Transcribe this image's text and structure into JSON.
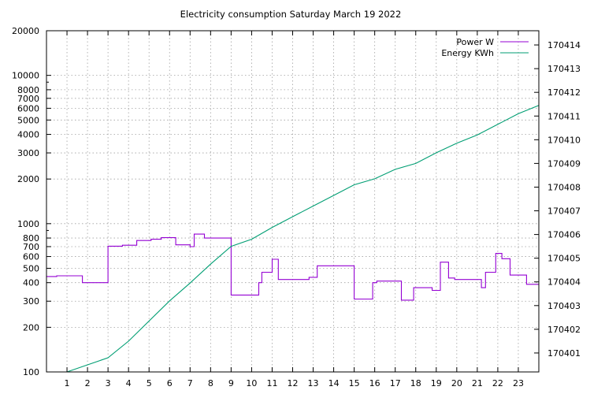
{
  "chart_data": {
    "type": "line",
    "title": "Electricity consumption Saturday March 19 2022",
    "xlabel": "",
    "ylabel": "",
    "y2label": "",
    "xlim": [
      0,
      24
    ],
    "ylim": [
      100,
      20000
    ],
    "y_scale": "log",
    "y2lim": [
      170400.2,
      170414.6
    ],
    "grid": true,
    "legend_position": "top-right",
    "x_ticks": [
      1,
      2,
      3,
      4,
      5,
      6,
      7,
      8,
      9,
      10,
      11,
      12,
      13,
      14,
      15,
      16,
      17,
      18,
      19,
      20,
      21,
      22,
      23
    ],
    "y_ticks": [
      {
        "value": 100,
        "label": "100"
      },
      {
        "value": 200,
        "label": "200"
      },
      {
        "value": 300,
        "label": "300"
      },
      {
        "value": 400,
        "label": "400"
      },
      {
        "value": 500,
        "label": "500"
      },
      {
        "value": 600,
        "label": "600"
      },
      {
        "value": 700,
        "label": "700"
      },
      {
        "value": 800,
        "label": "800"
      },
      {
        "value": 1000,
        "label": "1000"
      },
      {
        "value": 2000,
        "label": "2000"
      },
      {
        "value": 3000,
        "label": "3000"
      },
      {
        "value": 4000,
        "label": "4000"
      },
      {
        "value": 5000,
        "label": "5000"
      },
      {
        "value": 6000,
        "label": "6000"
      },
      {
        "value": 7000,
        "label": "7000"
      },
      {
        "value": 8000,
        "label": "8000"
      },
      {
        "value": 10000,
        "label": "10000"
      },
      {
        "value": 20000,
        "label": "20000"
      }
    ],
    "y_minor_ticks": [
      900,
      9000
    ],
    "y2_ticks": [
      170401,
      170402,
      170403,
      170404,
      170405,
      170406,
      170407,
      170408,
      170409,
      170410,
      170411,
      170412,
      170413,
      170414
    ],
    "series": [
      {
        "name": "Power W",
        "axis": "y",
        "color": "#9400d3",
        "style": "steps",
        "points": [
          [
            0,
            440
          ],
          [
            0.5,
            445
          ],
          [
            1.75,
            400
          ],
          [
            3.0,
            705
          ],
          [
            3.7,
            715
          ],
          [
            4.4,
            770
          ],
          [
            5.1,
            785
          ],
          [
            5.6,
            805
          ],
          [
            6.3,
            720
          ],
          [
            7.0,
            700
          ],
          [
            7.2,
            850
          ],
          [
            7.7,
            800
          ],
          [
            9.0,
            330
          ],
          [
            10.35,
            400
          ],
          [
            10.5,
            470
          ],
          [
            11.0,
            575
          ],
          [
            11.3,
            420
          ],
          [
            12.8,
            435
          ],
          [
            13.2,
            520
          ],
          [
            15.0,
            310
          ],
          [
            15.9,
            400
          ],
          [
            16.1,
            410
          ],
          [
            17.3,
            305
          ],
          [
            17.9,
            370
          ],
          [
            18.8,
            355
          ],
          [
            19.2,
            550
          ],
          [
            19.6,
            430
          ],
          [
            19.9,
            420
          ],
          [
            21.2,
            370
          ],
          [
            21.4,
            470
          ],
          [
            21.9,
            630
          ],
          [
            22.2,
            580
          ],
          [
            22.6,
            450
          ],
          [
            23.4,
            390
          ],
          [
            24,
            390
          ]
        ]
      },
      {
        "name": "Energy KWh",
        "axis": "y2",
        "color": "#009e73",
        "style": "line",
        "points": [
          [
            0.35,
            170400.0
          ],
          [
            1,
            170400.2
          ],
          [
            2,
            170400.5
          ],
          [
            3,
            170400.8
          ],
          [
            4,
            170401.5
          ],
          [
            5,
            170402.35
          ],
          [
            6,
            170403.2
          ],
          [
            7,
            170403.95
          ],
          [
            8,
            170404.75
          ],
          [
            9,
            170405.5
          ],
          [
            10,
            170405.8
          ],
          [
            11,
            170406.3
          ],
          [
            12,
            170406.75
          ],
          [
            13,
            170407.2
          ],
          [
            14,
            170407.65
          ],
          [
            15,
            170408.1
          ],
          [
            16,
            170408.35
          ],
          [
            17,
            170408.75
          ],
          [
            18,
            170409.0
          ],
          [
            19,
            170409.45
          ],
          [
            20,
            170409.85
          ],
          [
            21,
            170410.2
          ],
          [
            22,
            170410.65
          ],
          [
            23,
            170411.1
          ],
          [
            24,
            170411.45
          ]
        ]
      }
    ]
  }
}
